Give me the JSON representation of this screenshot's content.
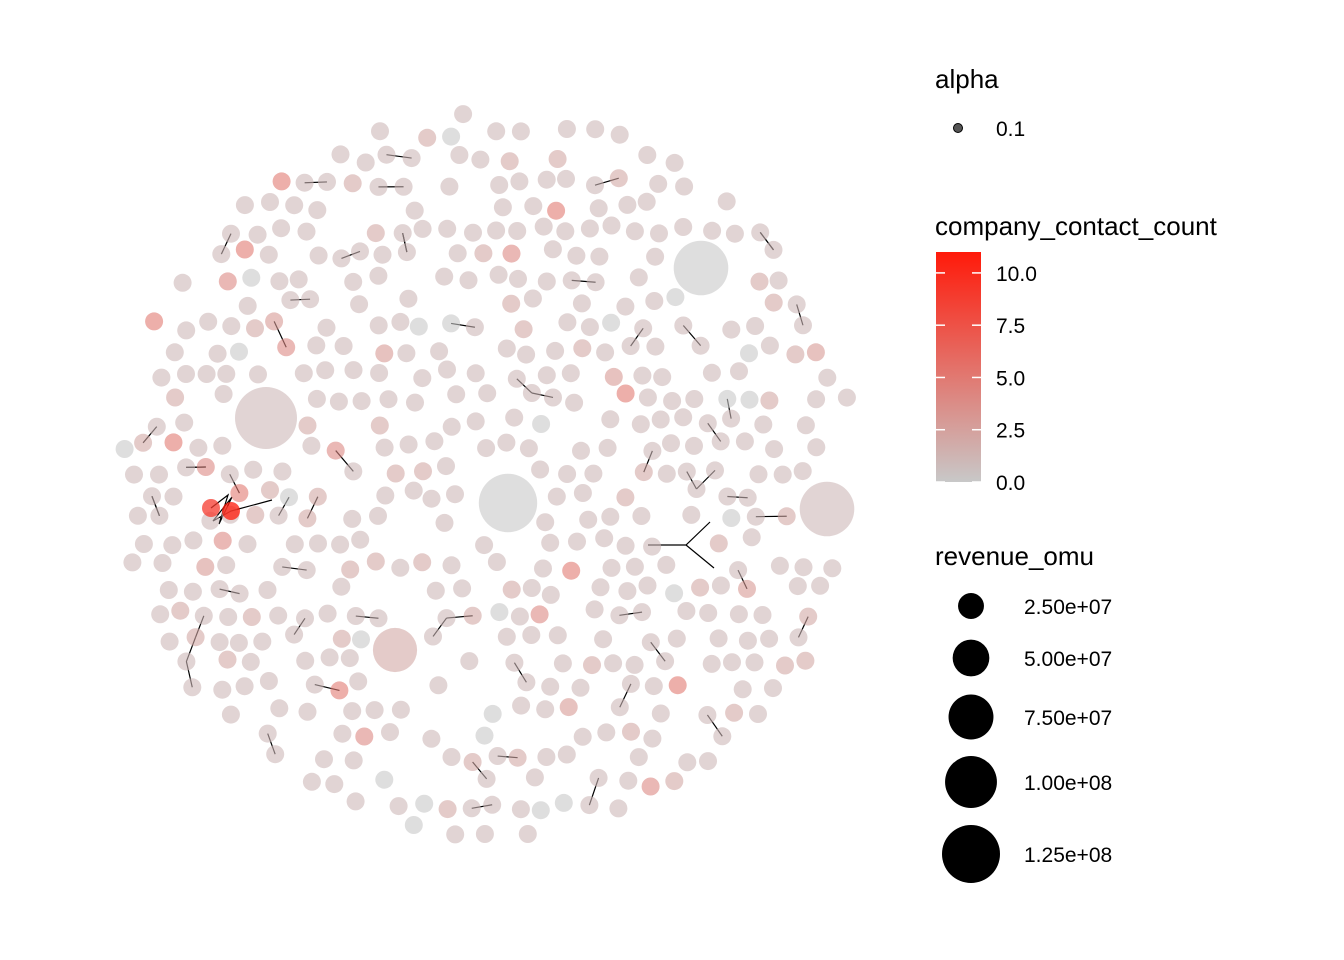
{
  "chart_data": {
    "type": "scatter",
    "title": "",
    "xlabel": "",
    "ylabel": "",
    "grid": false,
    "legend_position": "right",
    "colors": {
      "low": "#c8c8c8",
      "high": "#ff1a0a",
      "edge": "#000000"
    },
    "legends": {
      "alpha": {
        "title": "alpha",
        "entries": [
          "0.1"
        ]
      },
      "color": {
        "title": "company_contact_count",
        "breaks": [
          "10.0",
          "7.5",
          "5.0",
          "2.5",
          "0.0"
        ],
        "values": [
          10.0,
          7.5,
          5.0,
          2.5,
          0.0
        ],
        "limits": [
          0,
          11
        ]
      },
      "size": {
        "title": "revenue_omu",
        "labels": [
          "2.50e+07",
          "5.00e+07",
          "7.50e+07",
          "1.00e+08",
          "1.25e+08"
        ],
        "values": [
          25000000,
          50000000,
          75000000,
          100000000,
          125000000
        ]
      }
    },
    "nodes_note_not_shown": "",
    "large_nodes": [
      {
        "revenue_omu": 125000000,
        "contacts": 1
      },
      {
        "revenue_omu": 110000000,
        "contacts": 0
      },
      {
        "revenue_omu": 95000000,
        "contacts": 0
      },
      {
        "revenue_omu": 95000000,
        "contacts": 1
      },
      {
        "revenue_omu": 60000000,
        "contacts": 2
      }
    ],
    "highlight_nodes": [
      {
        "contacts": 11
      },
      {
        "contacts": 9
      }
    ],
    "node_count_approx": 480
  }
}
